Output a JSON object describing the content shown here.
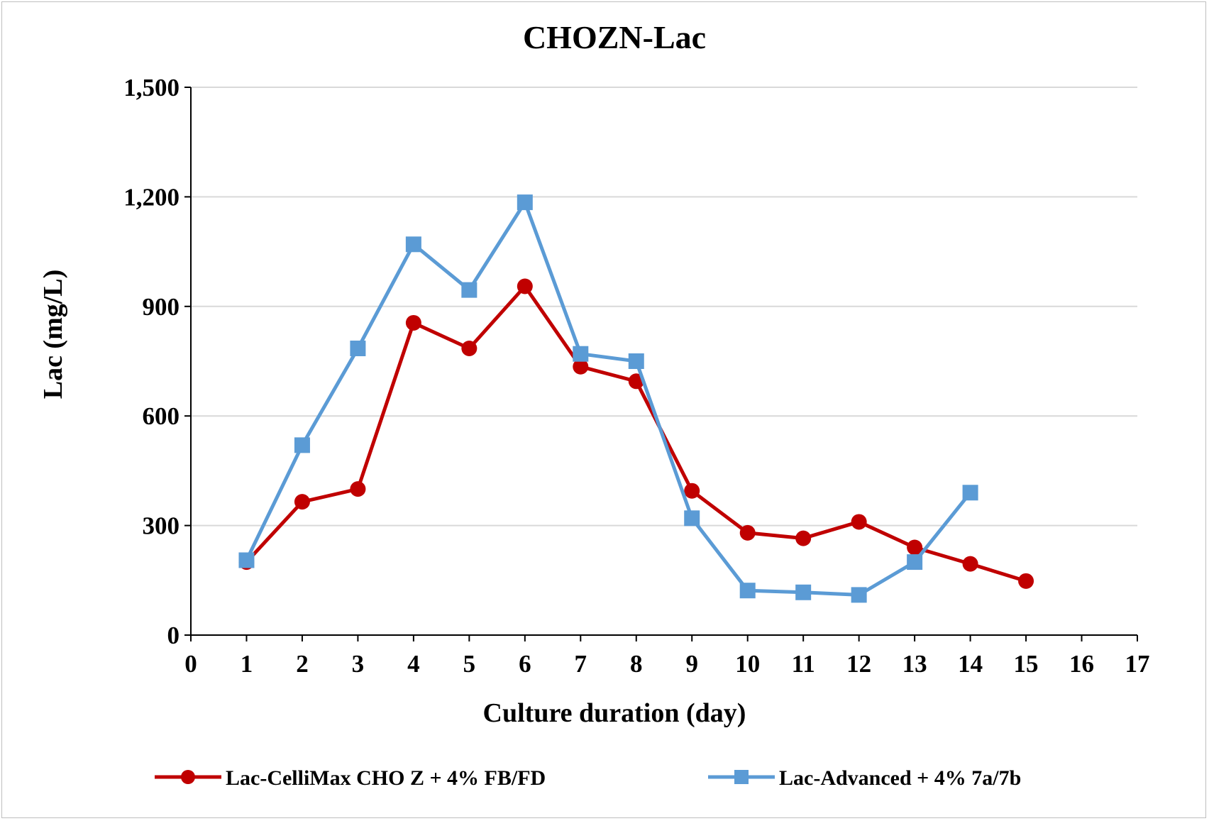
{
  "chart_data": {
    "type": "line",
    "title": "CHOZN-Lac",
    "xlabel": "Culture duration (day)",
    "ylabel": "Lac (mg/L)",
    "xlim": [
      0,
      17
    ],
    "ylim": [
      0,
      1500
    ],
    "x_ticks": [
      "0",
      "1",
      "2",
      "3",
      "4",
      "5",
      "6",
      "7",
      "8",
      "9",
      "10",
      "11",
      "12",
      "13",
      "14",
      "15",
      "16",
      "17"
    ],
    "y_ticks": [
      "0",
      "300",
      "600",
      "900",
      "1,200",
      "1,500"
    ],
    "grid": "horizontal",
    "legend_position": "bottom",
    "series": [
      {
        "name": "Lac-CelliMax CHO Z + 4% FB/FD",
        "color": "#c00000",
        "marker": "circle",
        "x": [
          1,
          2,
          3,
          4,
          5,
          6,
          7,
          8,
          9,
          10,
          11,
          12,
          13,
          14,
          15
        ],
        "values": [
          200,
          365,
          400,
          855,
          785,
          955,
          735,
          695,
          395,
          280,
          265,
          310,
          240,
          195,
          148
        ]
      },
      {
        "name": "Lac-Advanced + 4% 7a/7b",
        "color": "#5b9bd5",
        "marker": "square",
        "x": [
          1,
          2,
          3,
          4,
          5,
          6,
          7,
          8,
          9,
          10,
          11,
          12,
          13,
          14
        ],
        "values": [
          205,
          520,
          785,
          1070,
          945,
          1185,
          770,
          750,
          320,
          122,
          117,
          110,
          200,
          390
        ]
      }
    ]
  }
}
